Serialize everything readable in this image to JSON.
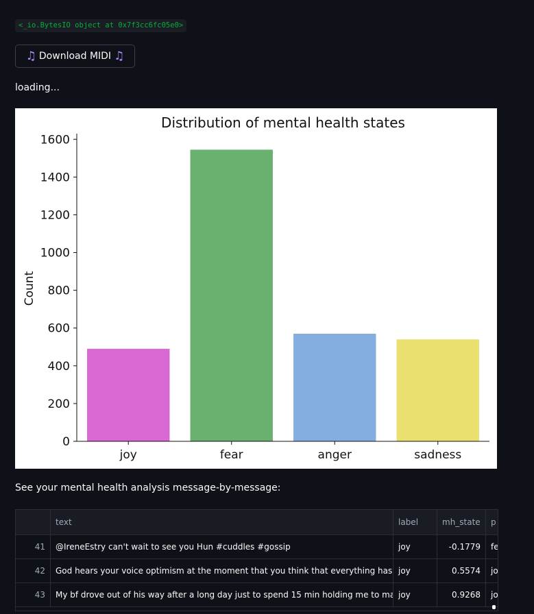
{
  "code_output": "<_io.BytesIO object at 0x7f3cc6fc05e0>",
  "download_button": {
    "label": "Download MIDI",
    "icon_left": "music-note-icon",
    "icon_right": "music-note-icon",
    "icon_glyph": "♫"
  },
  "status_text": "loading...",
  "chart_data": {
    "type": "bar",
    "title": "Distribution of mental health states",
    "xlabel": "",
    "ylabel": "Count",
    "categories": [
      "joy",
      "fear",
      "anger",
      "sadness"
    ],
    "values": [
      490,
      1545,
      570,
      540
    ],
    "colors": [
      "#d968d4",
      "#6ab06e",
      "#84aee0",
      "#e9e06f"
    ],
    "ylim": [
      0,
      1630
    ],
    "yticks": [
      0,
      200,
      400,
      600,
      800,
      1000,
      1200,
      1400,
      1600
    ],
    "grid": false,
    "legend": "none"
  },
  "analysis_caption": "See your mental health analysis message-by-message:",
  "table": {
    "columns": [
      "",
      "text",
      "label",
      "mh_state",
      "p"
    ],
    "rows": [
      {
        "index": "41",
        "text": "@IreneEstry can't wait to see you Hun #cuddles #gossip",
        "label": "joy",
        "mh_state": "-0.1779",
        "p": "fe"
      },
      {
        "index": "42",
        "text": "God hears your voice optimism at the moment that you think that everything has fail",
        "label": "joy",
        "mh_state": "0.5574",
        "p": "jo"
      },
      {
        "index": "43",
        "text": "My bf drove out of his way after a long day just to spend 15 min holding me to make n",
        "label": "joy",
        "mh_state": "0.9268",
        "p": "jo"
      }
    ]
  }
}
